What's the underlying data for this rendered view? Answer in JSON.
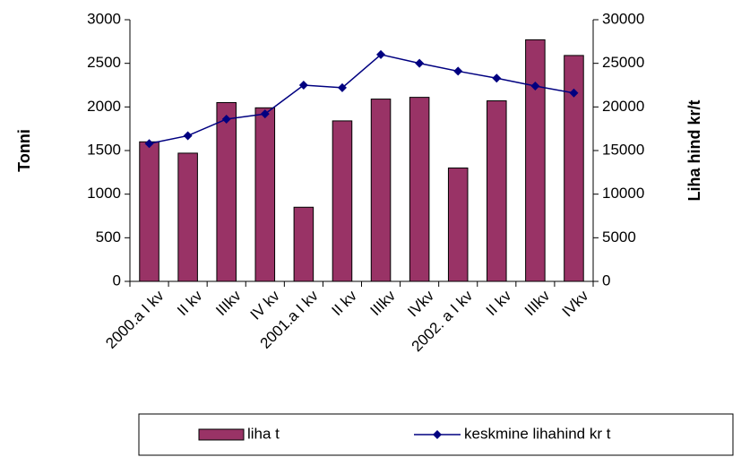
{
  "chart_data": {
    "type": "bar_line",
    "categories": [
      "2000.a I kv",
      "II kv",
      "IIIkv",
      "IV kv",
      "2001.a I kv",
      "II kv",
      "IIIkv",
      "IVkv",
      "2002. a I kv",
      "II kv",
      "IIIkv",
      "IVkv"
    ],
    "series": [
      {
        "name": "liha t",
        "type": "bar",
        "color": "#993366",
        "values": [
          1600,
          1470,
          2050,
          1990,
          850,
          1840,
          2090,
          2110,
          1300,
          2070,
          2770,
          2590
        ]
      },
      {
        "name": "keskmine lihahind kr t",
        "type": "line",
        "axis": "y2",
        "color": "#000080",
        "values": [
          15800,
          16700,
          18600,
          19200,
          22500,
          22200,
          26000,
          25000,
          24100,
          23300,
          22400,
          21600
        ]
      }
    ],
    "ylabel": "Tonni",
    "y2label": "Liha hind kr/t",
    "ylim": [
      0,
      3000
    ],
    "yticks": [
      0,
      500,
      1000,
      1500,
      2000,
      2500,
      3000
    ],
    "y2lim": [
      0,
      30000
    ],
    "y2ticks": [
      0,
      5000,
      10000,
      15000,
      20000,
      25000,
      30000
    ]
  }
}
